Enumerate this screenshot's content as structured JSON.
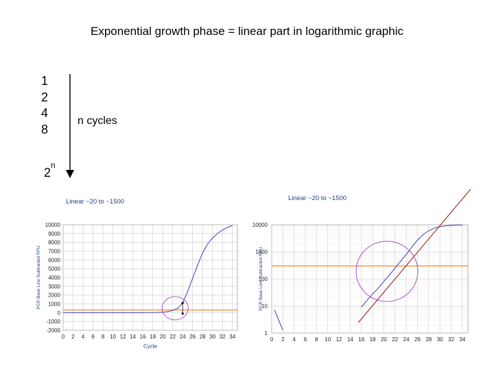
{
  "slide": {
    "title": "Exponential growth phase = linear part in logarithmic graphic",
    "sequence": [
      "1",
      "2",
      "4",
      "8"
    ],
    "n_cycles_label": "n cycles",
    "power_base": "2",
    "power_exp": "n"
  },
  "colors": {
    "curve": "#3b3bb0",
    "threshold": "#f2a15e",
    "circle": "#b04cc8",
    "fit_line": "#a01d1d",
    "grid": "#c8c8c8"
  },
  "chart_data": [
    {
      "type": "line",
      "title": "Linear ~20 to ~1500",
      "ylabel": "PCR Base Line Subtracted RFU",
      "xlabel": "Cycle",
      "xlim": [
        0,
        35
      ],
      "ylim": [
        -2000,
        10000
      ],
      "x_ticks": [
        "0",
        "2",
        "4",
        "6",
        "8",
        "10",
        "12",
        "14",
        "16",
        "18",
        "20",
        "22",
        "24",
        "26",
        "28",
        "30",
        "32",
        "34"
      ],
      "y_ticks": [
        "10000",
        "9000",
        "8000",
        "7000",
        "6000",
        "5000",
        "4000",
        "3000",
        "2000",
        "1000",
        "0",
        "-1000",
        "-2000"
      ],
      "threshold": 300,
      "series": [
        {
          "x": [
            0,
            10,
            16,
            18,
            19,
            20,
            21,
            22,
            23,
            24,
            25,
            26,
            27,
            28,
            29,
            30,
            31,
            32,
            33,
            34
          ],
          "y": [
            0,
            0,
            0,
            10,
            30,
            60,
            120,
            250,
            500,
            1100,
            2400,
            3900,
            5400,
            6800,
            7800,
            8500,
            9000,
            9400,
            9700,
            9900
          ]
        }
      ]
    },
    {
      "type": "line",
      "title": "Linear ~20 to ~1500",
      "ylabel": "PCR Base Line Subtracted RFU",
      "xlabel": "",
      "xlim": [
        0,
        35
      ],
      "ylim": [
        1,
        10000
      ],
      "log_scale": "y",
      "x_ticks": [
        "0",
        "2",
        "4",
        "6",
        "8",
        "10",
        "12",
        "14",
        "16",
        "18",
        "20",
        "22",
        "24",
        "26",
        "28",
        "30",
        "32",
        "34"
      ],
      "y_ticks": [
        "10000",
        "1000",
        "100",
        "10",
        "1"
      ],
      "threshold": 300,
      "series": [
        {
          "x": [
            0.5,
            1,
            1.5,
            2
          ],
          "y": [
            7,
            4,
            2.2,
            1.3
          ]
        },
        {
          "x": [
            16,
            17,
            18,
            19,
            20,
            21,
            22,
            23,
            24,
            25,
            26,
            27,
            28,
            29,
            30,
            31,
            32,
            33,
            34
          ],
          "y": [
            9,
            16,
            28,
            45,
            80,
            140,
            250,
            450,
            800,
            1500,
            2700,
            4300,
            6000,
            7500,
            8500,
            9100,
            9500,
            9700,
            9800
          ]
        }
      ]
    }
  ]
}
